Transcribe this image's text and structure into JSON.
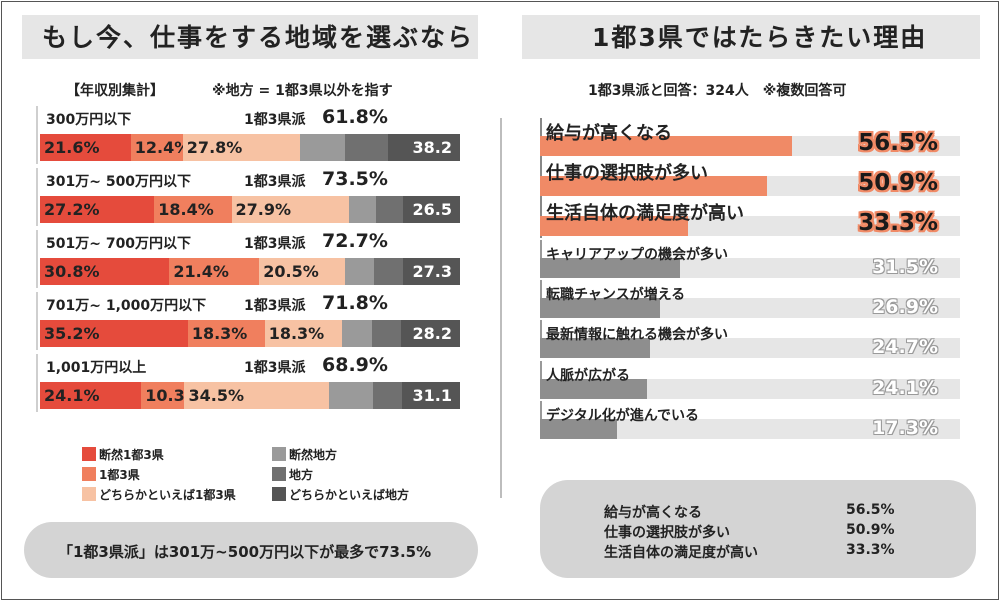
{
  "left": {
    "title": "もし今、仕事をする地域を選ぶなら",
    "subtitle_left": "【年収別集計】",
    "subtitle_right": "※地方 = 1都3県以外を指す",
    "legend": [
      {
        "label": "断然1都3県",
        "color": "#e54b3c"
      },
      {
        "label": "1都3県",
        "color": "#f07f5e"
      },
      {
        "label": "どちらかといえば1都3県",
        "color": "#f7c2a3"
      },
      {
        "label": "断然地方",
        "color": "#9a9a9a"
      },
      {
        "label": "地方",
        "color": "#707070"
      },
      {
        "label": "どちらかといえば地方",
        "color": "#555555"
      }
    ],
    "callout": "「1都3県派」は301万~500万円以下が最多で73.5%"
  },
  "right": {
    "title": "1都3県ではたらきたい理由",
    "subtitle": "1都3県派と回答：324人　※複数回答可",
    "summary": [
      {
        "label": "給与が高くなる",
        "value": "56.5%"
      },
      {
        "label": "仕事の選択肢が多い",
        "value": "50.9%"
      },
      {
        "label": "生活自体の満足度が高い",
        "value": "33.3%"
      }
    ]
  },
  "chart_data": [
    {
      "type": "bar",
      "stacked": true,
      "orientation": "horizontal",
      "title": "もし今、仕事をする地域を選ぶなら",
      "unit": "%",
      "groups": [
        {
          "label": "300万円以下",
          "tokyo_label": "1都3県派",
          "tokyo_total": "61.8%",
          "segments": [
            {
              "value": 21.6,
              "label": "21.6%"
            },
            {
              "value": 12.4,
              "label": "12.4%"
            },
            {
              "value": 27.8,
              "label": "27.8%"
            },
            {
              "value": 10.9,
              "label": ""
            },
            {
              "value": 10.2,
              "label": ""
            },
            {
              "value": 17.1,
              "label": ""
            }
          ],
          "chiho_total": "38.2"
        },
        {
          "label": "301万~ 500万円以下",
          "tokyo_label": "1都3県派",
          "tokyo_total": "73.5%",
          "segments": [
            {
              "value": 27.2,
              "label": "27.2%"
            },
            {
              "value": 18.4,
              "label": "18.4%"
            },
            {
              "value": 27.9,
              "label": "27.9%"
            },
            {
              "value": 6.6,
              "label": ""
            },
            {
              "value": 6.4,
              "label": ""
            },
            {
              "value": 13.5,
              "label": ""
            }
          ],
          "chiho_total": "26.5"
        },
        {
          "label": "501万~ 700万円以下",
          "tokyo_label": "1都3県派",
          "tokyo_total": "72.7%",
          "segments": [
            {
              "value": 30.8,
              "label": "30.8%"
            },
            {
              "value": 21.4,
              "label": "21.4%"
            },
            {
              "value": 20.5,
              "label": "20.5%"
            },
            {
              "value": 6.9,
              "label": ""
            },
            {
              "value": 6.8,
              "label": ""
            },
            {
              "value": 13.6,
              "label": ""
            }
          ],
          "chiho_total": "27.3"
        },
        {
          "label": "701万~ 1,000万円以下",
          "tokyo_label": "1都3県派",
          "tokyo_total": "71.8%",
          "segments": [
            {
              "value": 35.2,
              "label": "35.2%"
            },
            {
              "value": 18.3,
              "label": "18.3%"
            },
            {
              "value": 18.3,
              "label": "18.3%"
            },
            {
              "value": 7.2,
              "label": ""
            },
            {
              "value": 7.0,
              "label": ""
            },
            {
              "value": 14.0,
              "label": ""
            }
          ],
          "chiho_total": "28.2"
        },
        {
          "label": "1,001万円以上",
          "tokyo_label": "1都3県派",
          "tokyo_total": "68.9%",
          "segments": [
            {
              "value": 24.1,
              "label": "24.1%"
            },
            {
              "value": 10.3,
              "label": "10.3%"
            },
            {
              "value": 34.5,
              "label": "34.5%"
            },
            {
              "value": 10.3,
              "label": ""
            },
            {
              "value": 6.9,
              "label": ""
            },
            {
              "value": 13.9,
              "label": ""
            }
          ],
          "chiho_total": "31.1"
        }
      ],
      "xlim": [
        0,
        100
      ]
    },
    {
      "type": "bar",
      "orientation": "horizontal",
      "title": "1都3県ではたらきたい理由",
      "unit": "%",
      "xlim": [
        0,
        100
      ],
      "categories": [
        "給与が高くなる",
        "仕事の選択肢が多い",
        "生活自体の満足度が高い",
        "キャリアアップの機会が多い",
        "転職チャンスが増える",
        "最新情報に触れる機会が多い",
        "人脈が広がる",
        "デジタル化が進んでいる"
      ],
      "values": [
        56.5,
        50.9,
        33.3,
        31.5,
        26.9,
        24.7,
        24.1,
        17.3
      ],
      "labels": [
        "56.5%",
        "50.9%",
        "33.3%",
        "31.5%",
        "26.9%",
        "24.7%",
        "24.1%",
        "17.3%"
      ],
      "highlight_color": "#f08a66",
      "base_color": "#8e8e8e",
      "track_color": "#e6e6e6"
    }
  ]
}
